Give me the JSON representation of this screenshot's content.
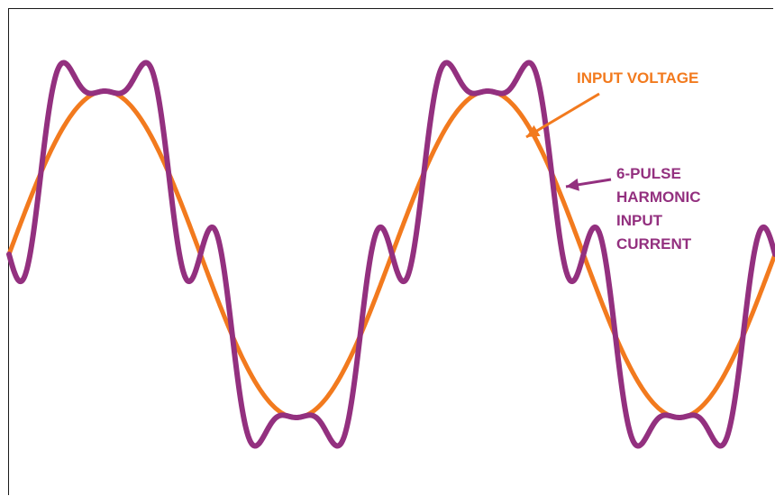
{
  "labels": {
    "voltage": "INPUT VOLTAGE",
    "current": "6-PULSE\nHARMONIC\nINPUT\nCURRENT"
  },
  "colors": {
    "voltage": "#f27a1e",
    "current": "#93307f",
    "frame": "#1a1a1a",
    "background": "#ffffff"
  },
  "waveforms": {
    "cycles_shown": 2,
    "voltage_amplitude": 1.0,
    "current_fundamental_amplitude": 1.14,
    "current_5th_harmonic_amplitude": 0.29,
    "current_7th_harmonic_amplitude": 0.15
  }
}
